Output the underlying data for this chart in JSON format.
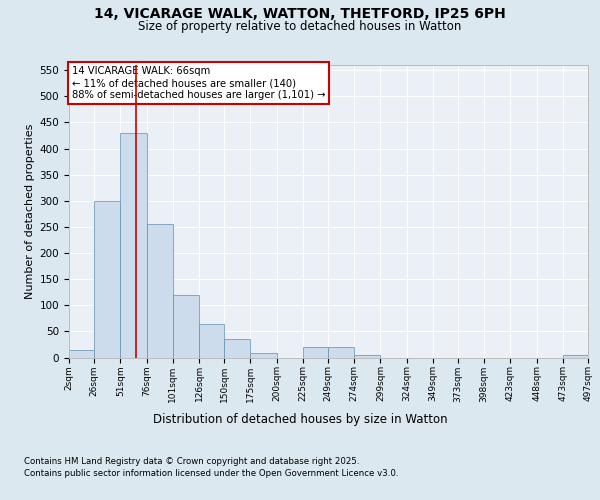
{
  "title_line1": "14, VICARAGE WALK, WATTON, THETFORD, IP25 6PH",
  "title_line2": "Size of property relative to detached houses in Watton",
  "xlabel": "Distribution of detached houses by size in Watton",
  "ylabel": "Number of detached properties",
  "bar_color": "#ccdcec",
  "bar_edge_color": "#6090b0",
  "annotation_box_text": "14 VICARAGE WALK: 66sqm\n← 11% of detached houses are smaller (140)\n88% of semi-detached houses are larger (1,101) →",
  "annotation_box_color": "#ffffff",
  "annotation_box_edge_color": "#cc0000",
  "vline_x": 66,
  "vline_color": "#cc0000",
  "footer_line1": "Contains HM Land Registry data © Crown copyright and database right 2025.",
  "footer_line2": "Contains public sector information licensed under the Open Government Licence v3.0.",
  "background_color": "#dce8f0",
  "plot_background_color": "#eaf0f6",
  "grid_color": "#ffffff",
  "ylim": [
    0,
    560
  ],
  "yticks": [
    0,
    50,
    100,
    150,
    200,
    250,
    300,
    350,
    400,
    450,
    500,
    550
  ],
  "bin_edges": [
    2,
    26,
    51,
    76,
    101,
    126,
    150,
    175,
    200,
    225,
    249,
    274,
    299,
    324,
    349,
    373,
    398,
    423,
    448,
    473,
    497
  ],
  "bar_heights": [
    15,
    300,
    430,
    255,
    120,
    65,
    35,
    8,
    0,
    20,
    20,
    5,
    0,
    0,
    0,
    0,
    0,
    0,
    0,
    5
  ],
  "tick_labels": [
    "2sqm",
    "26sqm",
    "51sqm",
    "76sqm",
    "101sqm",
    "126sqm",
    "150sqm",
    "175sqm",
    "200sqm",
    "225sqm",
    "249sqm",
    "274sqm",
    "299sqm",
    "324sqm",
    "349sqm",
    "373sqm",
    "398sqm",
    "423sqm",
    "448sqm",
    "473sqm",
    "497sqm"
  ]
}
